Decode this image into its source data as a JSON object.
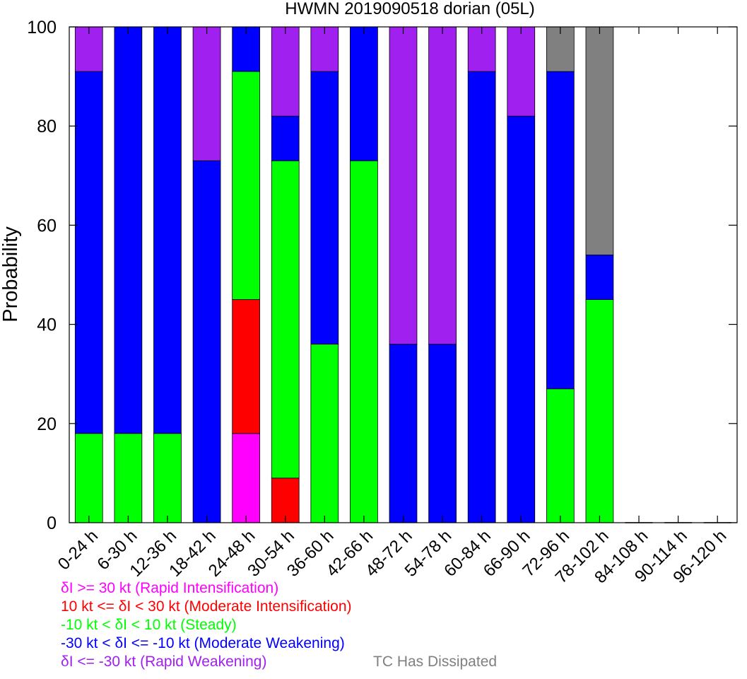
{
  "chart_data": {
    "type": "bar",
    "stacked": true,
    "title": "HWMN 2019090518 dorian (05L)",
    "ylabel": "Probability",
    "xlabel": "",
    "ylim": [
      0,
      100
    ],
    "yticks": [
      0,
      20,
      40,
      60,
      80,
      100
    ],
    "grid": false,
    "categories": [
      "0-24 h",
      "6-30 h",
      "12-36 h",
      "18-42 h",
      "24-48 h",
      "30-54 h",
      "36-60 h",
      "42-66 h",
      "48-72 h",
      "54-78 h",
      "60-84 h",
      "66-90 h",
      "72-96 h",
      "78-102 h",
      "84-108 h",
      "90-114 h",
      "96-120 h"
    ],
    "series": [
      {
        "name": "δI >= 30 kt (Rapid Intensification)",
        "color": "#ff00ff",
        "values": [
          0,
          0,
          0,
          0,
          18,
          0,
          0,
          0,
          0,
          0,
          0,
          0,
          0,
          0,
          0,
          0,
          0
        ]
      },
      {
        "name": "10 kt <= δI < 30 kt (Moderate Intensification)",
        "color": "#ff0000",
        "values": [
          0,
          0,
          0,
          0,
          27,
          9,
          0,
          0,
          0,
          0,
          0,
          0,
          0,
          0,
          0,
          0,
          0
        ]
      },
      {
        "name": "-10 kt < δI < 10 kt (Steady)",
        "color": "#00ff00",
        "values": [
          18,
          18,
          18,
          0,
          46,
          64,
          36,
          73,
          0,
          0,
          0,
          0,
          27,
          45,
          0,
          0,
          0
        ]
      },
      {
        "name": "-30 kt < δI <= -10 kt (Moderate Weakening)",
        "color": "#0000ff",
        "values": [
          73,
          82,
          82,
          73,
          9,
          9,
          55,
          27,
          36,
          36,
          91,
          82,
          64,
          9,
          0,
          0,
          0
        ]
      },
      {
        "name": "δI <= -30 kt (Rapid Weakening)",
        "color": "#a020f0",
        "values": [
          9,
          0,
          0,
          27,
          0,
          18,
          9,
          0,
          64,
          64,
          9,
          18,
          0,
          0,
          0,
          0,
          0
        ]
      },
      {
        "name": "TC Has Dissipated",
        "color": "#808080",
        "values": [
          0,
          0,
          0,
          0,
          0,
          0,
          0,
          0,
          0,
          0,
          0,
          0,
          9,
          46,
          0,
          0,
          0
        ]
      }
    ]
  }
}
